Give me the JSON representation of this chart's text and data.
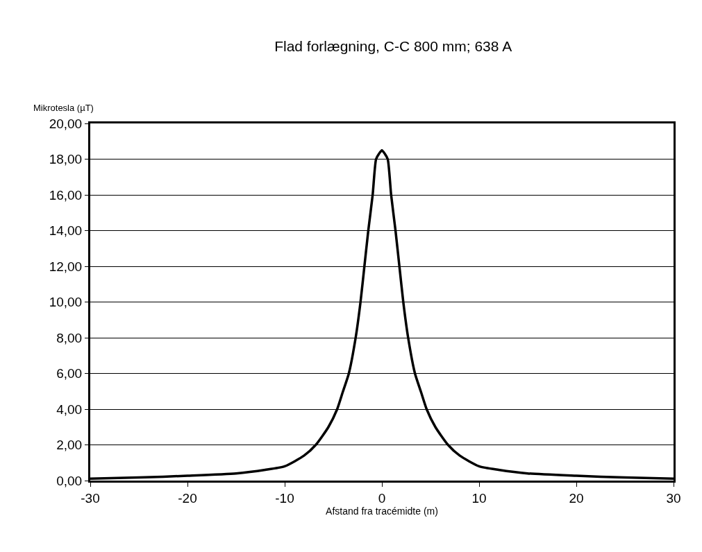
{
  "chart_data": {
    "type": "line",
    "title": "Flad forlægning, C-C 800 mm; 638 A",
    "xlabel": "Afstand fra tracémidte (m)",
    "ylabel": "Mikrotesla (µT)",
    "x": [
      -30,
      -25,
      -20,
      -15,
      -12,
      -10,
      -8,
      -6.8,
      -5.5,
      -4.6,
      -4,
      -3.4,
      -2.7,
      -2.2,
      -1.8,
      -1.4,
      -0.95,
      -0.6,
      -0.3,
      0,
      0.3,
      0.6,
      0.95,
      1.4,
      1.8,
      2.2,
      2.7,
      3.4,
      4,
      4.6,
      5.5,
      6.8,
      8,
      10,
      12,
      15,
      20,
      25,
      30
    ],
    "series": [
      {
        "color": "#000000",
        "values": [
          0.11,
          0.17,
          0.27,
          0.4,
          0.6,
          0.8,
          1.4,
          2,
          3,
          4,
          5,
          6,
          8,
          10,
          12,
          14,
          16,
          18,
          18.3,
          18.5,
          18.3,
          18,
          16,
          14,
          12,
          10,
          8,
          6,
          5,
          4,
          3,
          2,
          1.4,
          0.8,
          0.6,
          0.4,
          0.27,
          0.17,
          0.11
        ]
      }
    ],
    "xlim": [
      -30,
      30
    ],
    "xticks": [
      -30,
      -20,
      -10,
      0,
      10,
      20,
      30
    ],
    "ylim": [
      0,
      20
    ],
    "yticks": [
      {
        "value": 0,
        "label": "0,00"
      },
      {
        "value": 2,
        "label": "2,00"
      },
      {
        "value": 4,
        "label": "4,00"
      },
      {
        "value": 6,
        "label": "6,00"
      },
      {
        "value": 8,
        "label": "8,00"
      },
      {
        "value": 10,
        "label": "10,00"
      },
      {
        "value": 12,
        "label": "12,00"
      },
      {
        "value": 14,
        "label": "14,00"
      },
      {
        "value": 16,
        "label": "16,00"
      },
      {
        "value": 18,
        "label": "18,00"
      },
      {
        "value": 20,
        "label": "20,00"
      }
    ],
    "grid": "y",
    "line_style": "solid"
  }
}
